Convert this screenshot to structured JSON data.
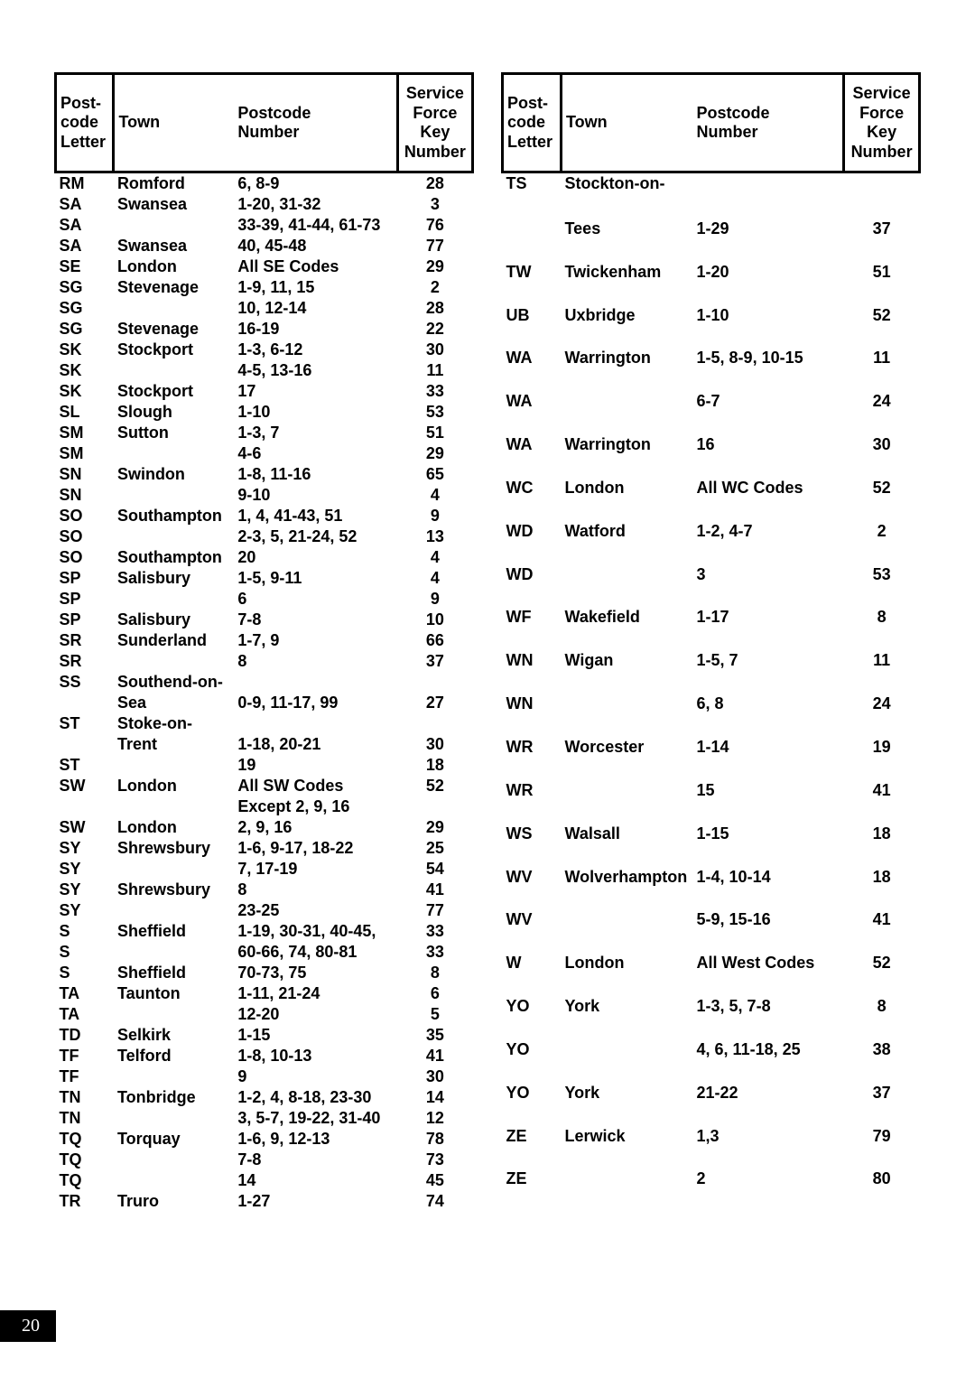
{
  "pageNumber": "20",
  "headers": {
    "letter": "Post-\ncode\nLetter",
    "town": "Town",
    "postcode": "Postcode\nNumber",
    "key": "Service\nForce\nKey\nNumber"
  },
  "leftRows": [
    {
      "l": "RM",
      "t": "Romford",
      "p": "6, 8-9",
      "k": "28"
    },
    {
      "l": "SA",
      "t": "Swansea",
      "p": "1-20, 31-32",
      "k": "3"
    },
    {
      "l": "SA",
      "t": "",
      "p": "33-39, 41-44, 61-73",
      "k": "76"
    },
    {
      "l": "SA",
      "t": "Swansea",
      "p": "40, 45-48",
      "k": "77"
    },
    {
      "l": "SE",
      "t": "London",
      "p": "All SE Codes",
      "k": "29"
    },
    {
      "l": "SG",
      "t": "Stevenage",
      "p": "1-9, 11, 15",
      "k": "2"
    },
    {
      "l": "SG",
      "t": "",
      "p": "10, 12-14",
      "k": "28"
    },
    {
      "l": "SG",
      "t": "Stevenage",
      "p": "16-19",
      "k": "22"
    },
    {
      "l": "SK",
      "t": "Stockport",
      "p": "1-3, 6-12",
      "k": "30"
    },
    {
      "l": "SK",
      "t": "",
      "p": "4-5, 13-16",
      "k": "11"
    },
    {
      "l": "SK",
      "t": "Stockport",
      "p": "17",
      "k": "33"
    },
    {
      "l": "SL",
      "t": "Slough",
      "p": "1-10",
      "k": "53"
    },
    {
      "l": "SM",
      "t": "Sutton",
      "p": "1-3, 7",
      "k": "51"
    },
    {
      "l": "SM",
      "t": "",
      "p": "4-6",
      "k": "29"
    },
    {
      "l": "SN",
      "t": "Swindon",
      "p": "1-8, 11-16",
      "k": "65"
    },
    {
      "l": "SN",
      "t": "",
      "p": "9-10",
      "k": "4"
    },
    {
      "l": "SO",
      "t": "Southampton",
      "p": "1, 4, 41-43, 51",
      "k": "9"
    },
    {
      "l": "SO",
      "t": "",
      "p": "2-3, 5, 21-24, 52",
      "k": "13"
    },
    {
      "l": "SO",
      "t": "Southampton",
      "p": "20",
      "k": "4"
    },
    {
      "l": "SP",
      "t": "Salisbury",
      "p": "1-5, 9-11",
      "k": "4"
    },
    {
      "l": "SP",
      "t": "",
      "p": "6",
      "k": "9"
    },
    {
      "l": "SP",
      "t": "Salisbury",
      "p": "7-8",
      "k": "10"
    },
    {
      "l": "SR",
      "t": "Sunderland",
      "p": "1-7, 9",
      "k": "66"
    },
    {
      "l": "SR",
      "t": "",
      "p": "8",
      "k": "37"
    },
    {
      "l": "SS",
      "t": "Southend-on-",
      "p": "",
      "k": ""
    },
    {
      "l": "",
      "t": "Sea",
      "p": "0-9, 11-17, 99",
      "k": "27"
    },
    {
      "l": "ST",
      "t": "Stoke-on-",
      "p": "",
      "k": ""
    },
    {
      "l": "",
      "t": "Trent",
      "p": "1-18, 20-21",
      "k": "30"
    },
    {
      "l": "ST",
      "t": "",
      "p": "19",
      "k": "18"
    },
    {
      "l": "SW",
      "t": "London",
      "p": "All SW Codes",
      "k": "52"
    },
    {
      "l": "",
      "t": "",
      "p": "Except 2, 9, 16",
      "k": ""
    },
    {
      "l": "SW",
      "t": "London",
      "p": "2, 9, 16",
      "k": "29"
    },
    {
      "l": "SY",
      "t": "Shrewsbury",
      "p": "1-6, 9-17, 18-22",
      "k": "25"
    },
    {
      "l": "SY",
      "t": "",
      "p": "7, 17-19",
      "k": "54"
    },
    {
      "l": "SY",
      "t": "Shrewsbury",
      "p": "8",
      "k": "41"
    },
    {
      "l": "SY",
      "t": "",
      "p": "23-25",
      "k": "77"
    },
    {
      "l": "S",
      "t": "Sheffield",
      "p": "1-19, 30-31, 40-45,",
      "k": "33"
    },
    {
      "l": "S",
      "t": "",
      "p": "60-66, 74, 80-81",
      "k": "33"
    },
    {
      "l": "S",
      "t": "Sheffield",
      "p": "70-73, 75",
      "k": "8"
    },
    {
      "l": "TA",
      "t": "Taunton",
      "p": "1-11, 21-24",
      "k": "6"
    },
    {
      "l": "TA",
      "t": "",
      "p": "12-20",
      "k": "5"
    },
    {
      "l": "TD",
      "t": "Selkirk",
      "p": "1-15",
      "k": "35"
    },
    {
      "l": "TF",
      "t": "Telford",
      "p": "1-8, 10-13",
      "k": "41"
    },
    {
      "l": "TF",
      "t": "",
      "p": "9",
      "k": "30"
    },
    {
      "l": "TN",
      "t": "Tonbridge",
      "p": "1-2, 4, 8-18, 23-30",
      "k": "14"
    },
    {
      "l": "TN",
      "t": "",
      "p": "3, 5-7, 19-22, 31-40",
      "k": "12"
    },
    {
      "l": "TQ",
      "t": "Torquay",
      "p": "1-6, 9, 12-13",
      "k": "78"
    },
    {
      "l": "TQ",
      "t": "",
      "p": "7-8",
      "k": "73"
    },
    {
      "l": "TQ",
      "t": "",
      "p": "14",
      "k": "45"
    },
    {
      "l": "TR",
      "t": "Truro",
      "p": "1-27",
      "k": "74"
    }
  ],
  "rightRows": [
    {
      "l": "TS",
      "t": "Stockton-on-",
      "p": "",
      "k": ""
    },
    {
      "l": "",
      "t": "Tees",
      "p": "1-29",
      "k": "37"
    },
    {
      "l": "TW",
      "t": "Twickenham",
      "p": "1-20",
      "k": "51"
    },
    {
      "l": "UB",
      "t": "Uxbridge",
      "p": "1-10",
      "k": "52"
    },
    {
      "l": "WA",
      "t": "Warrington",
      "p": "1-5, 8-9, 10-15",
      "k": "11"
    },
    {
      "l": "WA",
      "t": "",
      "p": "6-7",
      "k": "24"
    },
    {
      "l": "WA",
      "t": "Warrington",
      "p": "16",
      "k": "30"
    },
    {
      "l": "WC",
      "t": "London",
      "p": "All WC Codes",
      "k": "52"
    },
    {
      "l": "WD",
      "t": "Watford",
      "p": "1-2, 4-7",
      "k": "2"
    },
    {
      "l": "WD",
      "t": "",
      "p": "3",
      "k": "53"
    },
    {
      "l": "WF",
      "t": "Wakefield",
      "p": "1-17",
      "k": "8"
    },
    {
      "l": "WN",
      "t": "Wigan",
      "p": "1-5, 7",
      "k": "11"
    },
    {
      "l": "WN",
      "t": "",
      "p": "6, 8",
      "k": "24"
    },
    {
      "l": "WR",
      "t": "Worcester",
      "p": "1-14",
      "k": "19"
    },
    {
      "l": "WR",
      "t": "",
      "p": "15",
      "k": "41"
    },
    {
      "l": "WS",
      "t": "Walsall",
      "p": "1-15",
      "k": "18"
    },
    {
      "l": "WV",
      "t": "Wolverhampton",
      "p": "1-4, 10-14",
      "k": "18"
    },
    {
      "l": "WV",
      "t": "",
      "p": "5-9, 15-16",
      "k": "41"
    },
    {
      "l": "W",
      "t": "London",
      "p": "All West Codes",
      "k": "52"
    },
    {
      "l": "YO",
      "t": "York",
      "p": "1-3, 5, 7-8",
      "k": "8"
    },
    {
      "l": "YO",
      "t": "",
      "p": "4, 6, 11-18, 25",
      "k": "38"
    },
    {
      "l": "YO",
      "t": "York",
      "p": "21-22",
      "k": "37"
    },
    {
      "l": "ZE",
      "t": "Lerwick",
      "p": "1,3",
      "k": "79"
    },
    {
      "l": "ZE",
      "t": "",
      "p": "2",
      "k": "80"
    }
  ]
}
